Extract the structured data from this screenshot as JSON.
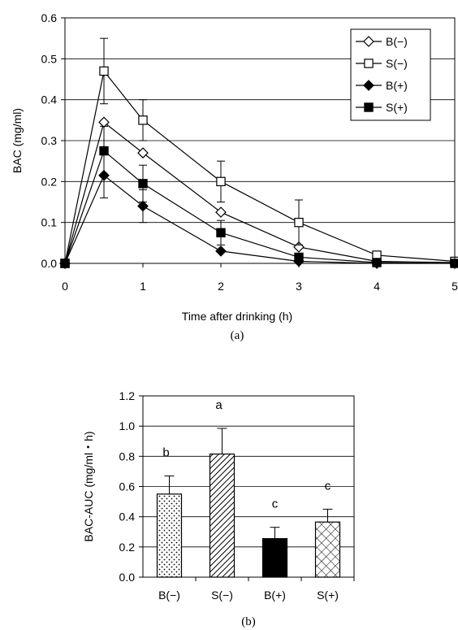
{
  "chart_data": [
    {
      "type": "line",
      "caption": "(a)",
      "xlabel": "Time after drinking (h)",
      "ylabel": "BAC (mg/ml)",
      "xlim": [
        0,
        5
      ],
      "ylim": [
        0,
        0.6
      ],
      "xticks": [
        0,
        1,
        2,
        3,
        4,
        5
      ],
      "yticks": [
        "0.0",
        "0.1",
        "0.2",
        "0.3",
        "0.4",
        "0.5",
        "0.6"
      ],
      "grid": true,
      "legend_position": "top-right",
      "x": [
        0,
        0.5,
        1,
        2,
        3,
        4,
        5
      ],
      "series": [
        {
          "name": "B(−)",
          "marker": "open-diamond",
          "values": [
            0,
            0.345,
            0.27,
            0.125,
            0.04,
            0.005,
            0.002
          ],
          "err": [
            0,
            0,
            0,
            0,
            0,
            0,
            0
          ]
        },
        {
          "name": "S(−)",
          "marker": "open-square",
          "values": [
            0,
            0.47,
            0.35,
            0.2,
            0.1,
            0.02,
            0.005
          ],
          "err": [
            0,
            0.08,
            0.05,
            0.05,
            0.055,
            0,
            0
          ]
        },
        {
          "name": "B(+)",
          "marker": "filled-diamond",
          "values": [
            0,
            0.215,
            0.14,
            0.03,
            0.005,
            0,
            0
          ],
          "err": [
            0,
            0.055,
            0.04,
            0,
            0,
            0,
            0
          ]
        },
        {
          "name": "S(+)",
          "marker": "filled-square",
          "values": [
            0,
            0.275,
            0.195,
            0.075,
            0.015,
            0.002,
            0
          ],
          "err": [
            0,
            0.06,
            0.045,
            0.03,
            0,
            0,
            0
          ]
        }
      ]
    },
    {
      "type": "bar",
      "caption": "(b)",
      "ylabel": "BAC-AUC (mg/ml・h)",
      "ylim": [
        0,
        1.2
      ],
      "yticks": [
        "0.0",
        "0.2",
        "0.4",
        "0.6",
        "0.8",
        "1.0",
        "1.2"
      ],
      "grid": true,
      "categories": [
        "B(−)",
        "S(−)",
        "B(+)",
        "S(+)"
      ],
      "values": [
        0.55,
        0.815,
        0.255,
        0.365
      ],
      "err": [
        0.12,
        0.17,
        0.075,
        0.085
      ],
      "fills": [
        "dots",
        "diagonal",
        "solid",
        "crosshatch"
      ],
      "significance": [
        "b",
        "a",
        "c",
        "c"
      ]
    }
  ]
}
